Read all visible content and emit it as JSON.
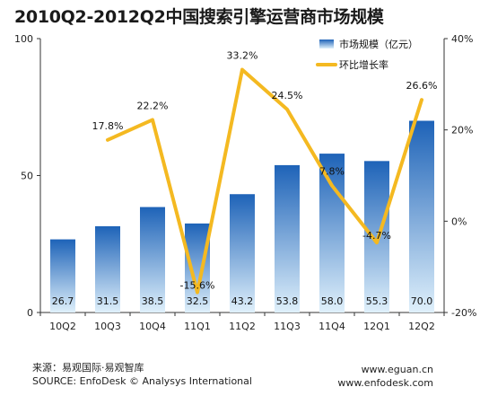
{
  "title": "2010Q2-2012Q2中国搜索引擎运营商市场规模",
  "footer": {
    "source_cn": "来源：易观国际·易观智库",
    "source_en": "SOURCE: EnfoDesk © Analysys International",
    "url1": "www.eguan.cn",
    "url2": "www.enfodesk.com"
  },
  "colors": {
    "bar_top": "#1e63b8",
    "bar_bottom": "#dff0fb",
    "line": "#f4b921"
  },
  "chart_data": {
    "type": "bar",
    "categories": [
      "10Q2",
      "10Q3",
      "10Q4",
      "11Q1",
      "11Q2",
      "11Q3",
      "11Q4",
      "12Q1",
      "12Q2"
    ],
    "series": [
      {
        "name": "市场规模（亿元）",
        "type": "bar",
        "axis": "left",
        "values": [
          26.7,
          31.5,
          38.5,
          32.5,
          43.2,
          53.8,
          58.0,
          55.3,
          70.0
        ],
        "labels": [
          "26.7",
          "31.5",
          "38.5",
          "32.5",
          "43.2",
          "53.8",
          "58.0",
          "55.3",
          "70.0"
        ]
      },
      {
        "name": "环比增长率",
        "type": "line",
        "axis": "right",
        "values": [
          null,
          17.8,
          22.2,
          -15.6,
          33.2,
          24.5,
          7.8,
          -4.7,
          26.6
        ],
        "labels": [
          "",
          "17.8%",
          "22.2%",
          "-15.6%",
          "33.2%",
          "24.5%",
          "7.8%",
          "-4.7%",
          "26.6%"
        ]
      }
    ],
    "y_left": {
      "min": 0,
      "max": 100,
      "ticks": [
        "0",
        "50",
        "100"
      ],
      "tick_values": [
        0,
        50,
        100
      ]
    },
    "y_right": {
      "min": -20,
      "max": 40,
      "ticks": [
        "-20%",
        "0%",
        "20%",
        "40%"
      ],
      "tick_values": [
        -20,
        0,
        20,
        40
      ]
    },
    "legend_position": "top-right",
    "grid": false
  }
}
